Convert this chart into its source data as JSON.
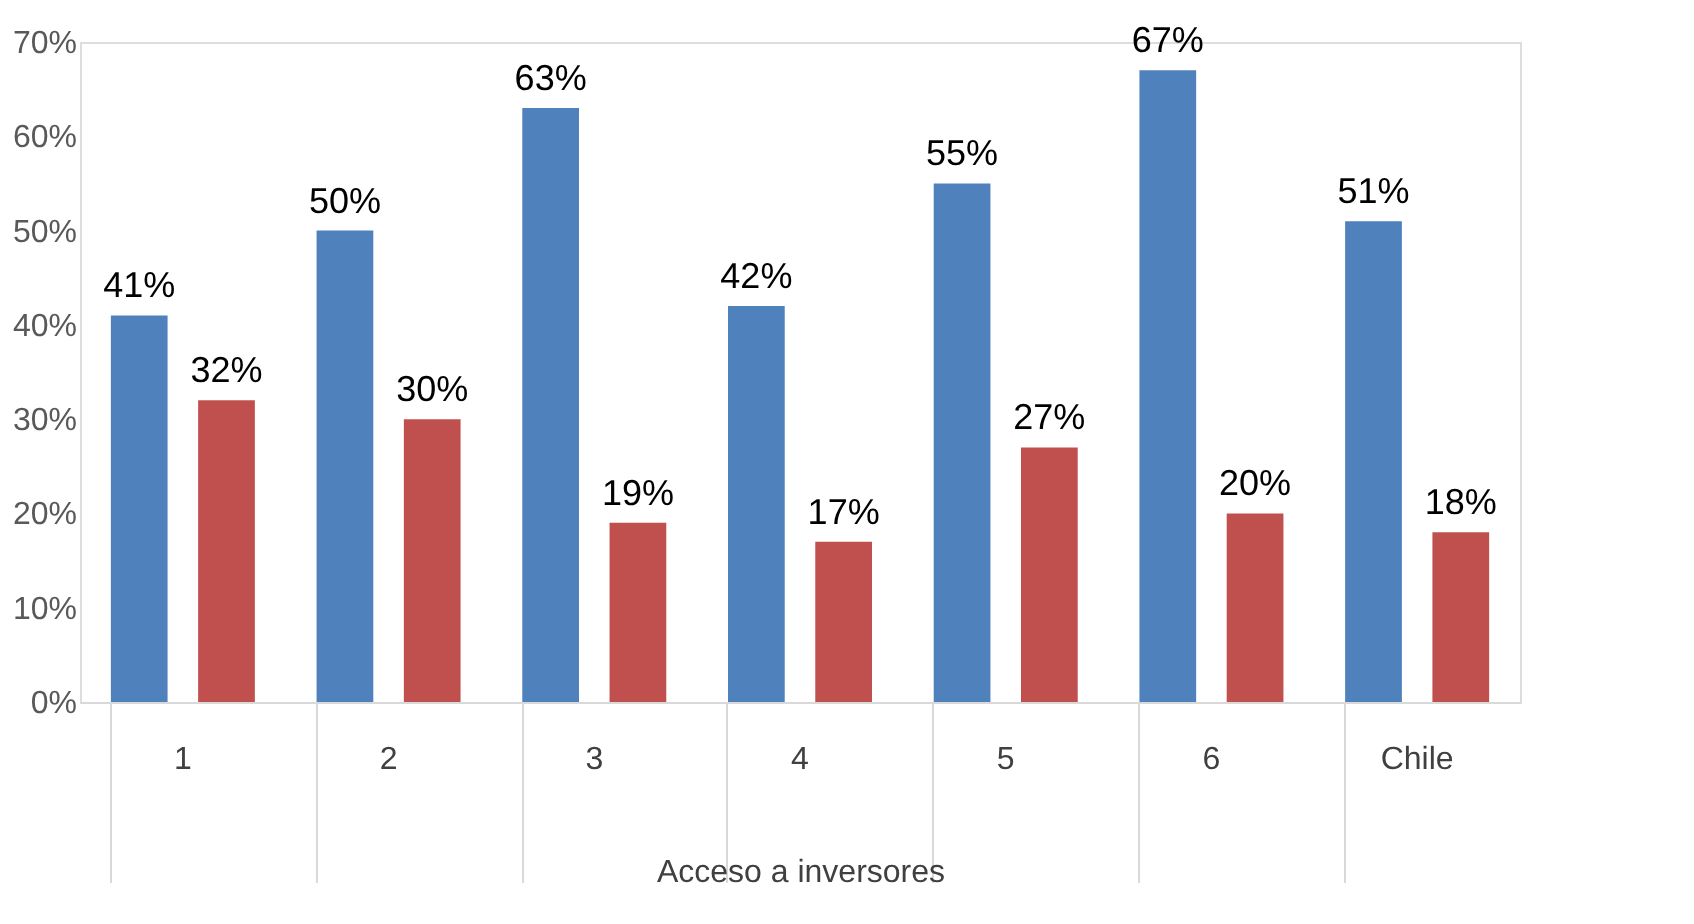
{
  "chart_data": {
    "type": "bar",
    "xlabel": "Acceso a inversores",
    "categories": [
      "1",
      "2",
      "3",
      "4",
      "5",
      "6",
      "Chile"
    ],
    "series": [
      {
        "color": "#4f81bd",
        "values": [
          41,
          50,
          63,
          42,
          55,
          67,
          51
        ],
        "value_labels": [
          "41%",
          "50%",
          "63%",
          "42%",
          "55%",
          "67%",
          "51%"
        ]
      },
      {
        "color": "#c0504d",
        "values": [
          32,
          30,
          19,
          17,
          27,
          20,
          18
        ],
        "value_labels": [
          "32%",
          "30%",
          "19%",
          "17%",
          "27%",
          "20%",
          "18%"
        ]
      }
    ],
    "ylim": [
      0,
      70
    ],
    "yticks": [
      {
        "value": 0,
        "label": "0%"
      },
      {
        "value": 10,
        "label": "10%"
      },
      {
        "value": 20,
        "label": "20%"
      },
      {
        "value": 30,
        "label": "30%"
      },
      {
        "value": 40,
        "label": "40%"
      },
      {
        "value": 50,
        "label": "50%"
      },
      {
        "value": 60,
        "label": "60%"
      },
      {
        "value": 70,
        "label": "70%"
      }
    ],
    "grid": false,
    "legend": false
  }
}
